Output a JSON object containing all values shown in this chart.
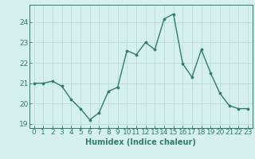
{
  "x": [
    0,
    1,
    2,
    3,
    4,
    5,
    6,
    7,
    8,
    9,
    10,
    11,
    12,
    13,
    14,
    15,
    16,
    17,
    18,
    19,
    20,
    21,
    22,
    23
  ],
  "y": [
    21.0,
    21.0,
    21.1,
    20.85,
    20.2,
    19.75,
    19.2,
    19.55,
    20.6,
    20.8,
    22.6,
    22.4,
    23.0,
    22.65,
    24.15,
    24.4,
    21.95,
    21.3,
    22.65,
    21.5,
    20.5,
    19.9,
    19.75,
    19.75
  ],
  "line_color": "#2e7d6e",
  "marker": "o",
  "marker_size": 2.2,
  "linewidth": 1.0,
  "bg_color": "#d6f0f0",
  "grid_color": "#c0dede",
  "xlabel": "Humidex (Indice chaleur)",
  "xlabel_fontsize": 7,
  "tick_fontsize": 6.5,
  "ylim": [
    18.8,
    24.85
  ],
  "xlim": [
    -0.5,
    23.5
  ],
  "yticks": [
    19,
    20,
    21,
    22,
    23,
    24
  ],
  "xticks": [
    0,
    1,
    2,
    3,
    4,
    5,
    6,
    7,
    8,
    9,
    10,
    11,
    12,
    13,
    14,
    15,
    16,
    17,
    18,
    19,
    20,
    21,
    22,
    23
  ]
}
